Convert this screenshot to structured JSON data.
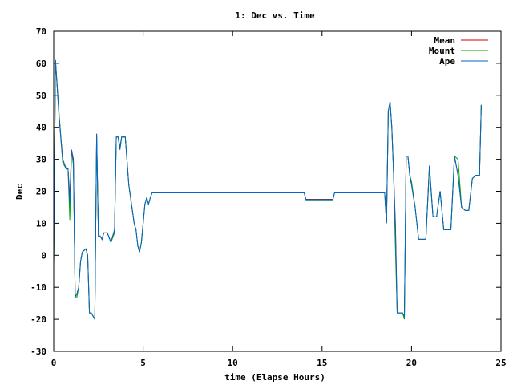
{
  "chart_data": {
    "type": "line",
    "title": "1: Dec vs. Time",
    "xlabel": "time (Elapse Hours)",
    "ylabel": "Dec",
    "xlim": [
      0,
      25
    ],
    "ylim": [
      -30,
      70
    ],
    "xticks": [
      0,
      5,
      10,
      15,
      20,
      25
    ],
    "yticks": [
      -30,
      -20,
      -10,
      0,
      10,
      20,
      30,
      40,
      50,
      60,
      70
    ],
    "grid": false,
    "legend_position": "top-right",
    "series": [
      {
        "name": "Mean",
        "color": "#cc0000",
        "x": [
          0,
          0.1,
          0.3,
          0.5,
          0.7,
          0.8,
          0.9,
          1.0,
          1.1,
          1.2,
          1.3,
          1.4,
          1.5,
          1.6,
          1.8,
          1.9,
          2.0,
          2.1,
          2.2,
          2.3,
          2.4,
          2.5,
          2.6,
          2.7,
          2.8,
          3.0,
          3.2,
          3.4,
          3.5,
          3.6,
          3.7,
          3.8,
          4.0,
          4.2,
          4.5,
          4.6,
          4.7,
          4.8,
          4.9,
          5.0,
          5.1,
          5.2,
          5.3,
          5.4,
          5.5,
          5.6,
          5.8,
          6.0,
          8.0,
          10.0,
          12.0,
          13.5,
          14.0,
          14.1,
          14.5,
          15.0,
          15.5,
          15.6,
          15.7,
          16.0,
          17.0,
          18.0,
          18.4,
          18.5,
          18.6,
          18.7,
          18.8,
          18.9,
          19.0,
          19.1,
          19.2,
          19.3,
          19.4,
          19.5,
          19.6,
          19.7,
          19.8,
          19.9,
          20.0,
          20.2,
          20.4,
          20.6,
          20.8,
          21.0,
          21.2,
          21.4,
          21.6,
          21.8,
          22.0,
          22.2,
          22.4,
          22.6,
          22.8,
          23.0,
          23.2,
          23.4,
          23.6,
          23.8,
          23.9
        ],
        "values": [
          -3,
          61,
          44,
          30,
          27,
          27,
          18,
          33,
          30,
          -13,
          -12,
          -10,
          -2,
          1,
          2,
          0,
          -18,
          -18,
          -19,
          -20,
          38,
          6,
          6,
          5,
          7,
          7,
          4,
          8,
          37,
          37,
          33,
          37,
          37,
          22,
          10,
          8,
          3,
          1,
          4,
          10,
          16,
          18,
          16,
          18,
          19.5,
          19.5,
          19.5,
          19.5,
          19.5,
          19.5,
          19.5,
          19.5,
          19.5,
          17.5,
          17.5,
          17.5,
          17.5,
          17.5,
          19.5,
          19.5,
          19.5,
          19.5,
          19.5,
          19.5,
          10,
          45,
          48,
          40,
          25,
          10,
          -18,
          -18,
          -18,
          -18,
          -19,
          31,
          31,
          25,
          22,
          15,
          5,
          5,
          5,
          28,
          12,
          12,
          20,
          8,
          8,
          8,
          31,
          25,
          15,
          14,
          14,
          24,
          25,
          25,
          47
        ]
      },
      {
        "name": "Mount",
        "color": "#00aa00",
        "x": [
          0,
          0.1,
          0.3,
          0.5,
          0.7,
          0.8,
          0.9,
          1.0,
          1.1,
          1.2,
          1.3,
          1.4,
          1.5,
          1.6,
          1.8,
          1.9,
          2.0,
          2.1,
          2.2,
          2.3,
          2.4,
          2.5,
          2.6,
          2.7,
          2.8,
          3.0,
          3.2,
          3.4,
          3.5,
          3.6,
          3.7,
          3.8,
          4.0,
          4.2,
          4.5,
          4.6,
          4.7,
          4.8,
          4.9,
          5.0,
          5.1,
          5.2,
          5.3,
          5.4,
          5.5,
          5.6,
          5.8,
          6.0,
          8.0,
          10.0,
          12.0,
          13.5,
          14.0,
          14.1,
          14.5,
          15.0,
          15.5,
          15.6,
          15.7,
          16.0,
          17.0,
          18.0,
          18.4,
          18.5,
          18.6,
          18.7,
          18.8,
          18.9,
          19.0,
          19.1,
          19.2,
          19.3,
          19.4,
          19.5,
          19.6,
          19.7,
          19.8,
          19.9,
          20.0,
          20.2,
          20.4,
          20.6,
          20.8,
          21.0,
          21.2,
          21.4,
          21.6,
          21.8,
          22.0,
          22.2,
          22.4,
          22.6,
          22.8,
          23.0,
          23.2,
          23.4,
          23.6,
          23.8,
          23.9
        ],
        "values": [
          -3,
          61,
          44,
          29,
          27,
          27,
          11,
          33,
          28,
          -13,
          -13,
          -10,
          -2,
          1,
          2,
          0,
          -18,
          -18,
          -19,
          -20,
          37,
          6,
          6,
          5,
          7,
          7,
          4,
          7,
          37,
          37,
          34,
          37,
          37,
          22,
          10,
          8,
          3,
          1,
          4,
          10,
          16,
          18,
          16,
          18,
          19.5,
          19.5,
          19.5,
          19.5,
          19.5,
          19.5,
          19.5,
          19.5,
          19.5,
          17.3,
          17.3,
          17.3,
          17.3,
          17.3,
          19.5,
          19.5,
          19.5,
          19.5,
          19.5,
          19.5,
          10,
          45,
          48,
          40,
          25,
          2,
          -18,
          -18,
          -18,
          -18,
          -20,
          31,
          31,
          25,
          23,
          15,
          5,
          5,
          5,
          27,
          12,
          12,
          20,
          8,
          8,
          8,
          31,
          30,
          15,
          14,
          14,
          24,
          25,
          25,
          47
        ]
      },
      {
        "name": "Ape",
        "color": "#0066cc",
        "x": [
          0,
          0.1,
          0.3,
          0.5,
          0.7,
          0.8,
          0.9,
          1.0,
          1.1,
          1.2,
          1.3,
          1.4,
          1.5,
          1.6,
          1.8,
          1.9,
          2.0,
          2.1,
          2.2,
          2.3,
          2.4,
          2.5,
          2.6,
          2.7,
          2.8,
          3.0,
          3.2,
          3.4,
          3.5,
          3.6,
          3.7,
          3.8,
          4.0,
          4.2,
          4.5,
          4.6,
          4.7,
          4.8,
          4.9,
          5.0,
          5.1,
          5.2,
          5.3,
          5.4,
          5.5,
          5.6,
          5.8,
          6.0,
          8.0,
          10.0,
          12.0,
          13.5,
          14.0,
          14.1,
          14.5,
          15.0,
          15.5,
          15.6,
          15.7,
          16.0,
          17.0,
          18.0,
          18.4,
          18.5,
          18.6,
          18.7,
          18.8,
          18.9,
          19.0,
          19.1,
          19.2,
          19.3,
          19.4,
          19.5,
          19.6,
          19.7,
          19.8,
          19.9,
          20.0,
          20.2,
          20.4,
          20.6,
          20.8,
          21.0,
          21.2,
          21.4,
          21.6,
          21.8,
          22.0,
          22.2,
          22.4,
          22.6,
          22.8,
          23.0,
          23.2,
          23.4,
          23.6,
          23.8,
          23.9
        ],
        "values": [
          -3,
          61,
          43,
          30,
          27,
          27,
          16,
          33,
          29,
          -13,
          -12,
          -10,
          -2,
          1,
          2,
          0,
          -18,
          -18,
          -19,
          -20,
          38,
          6,
          6,
          5,
          7,
          7,
          4,
          8,
          37,
          37,
          33,
          37,
          37,
          22,
          10,
          8,
          3,
          1,
          4,
          10,
          16,
          18,
          16,
          18,
          19.5,
          19.5,
          19.5,
          19.5,
          19.5,
          19.5,
          19.5,
          19.5,
          19.5,
          17.4,
          17.4,
          17.4,
          17.4,
          17.4,
          19.5,
          19.5,
          19.5,
          19.5,
          19.5,
          19.5,
          10,
          45,
          48,
          40,
          25,
          8,
          -18,
          -18,
          -18,
          -18,
          -19,
          31,
          31,
          25,
          22,
          15,
          5,
          5,
          5,
          28,
          12,
          12,
          20,
          8,
          8,
          8,
          31,
          25,
          15,
          14,
          14,
          24,
          25,
          25,
          47
        ]
      }
    ]
  }
}
